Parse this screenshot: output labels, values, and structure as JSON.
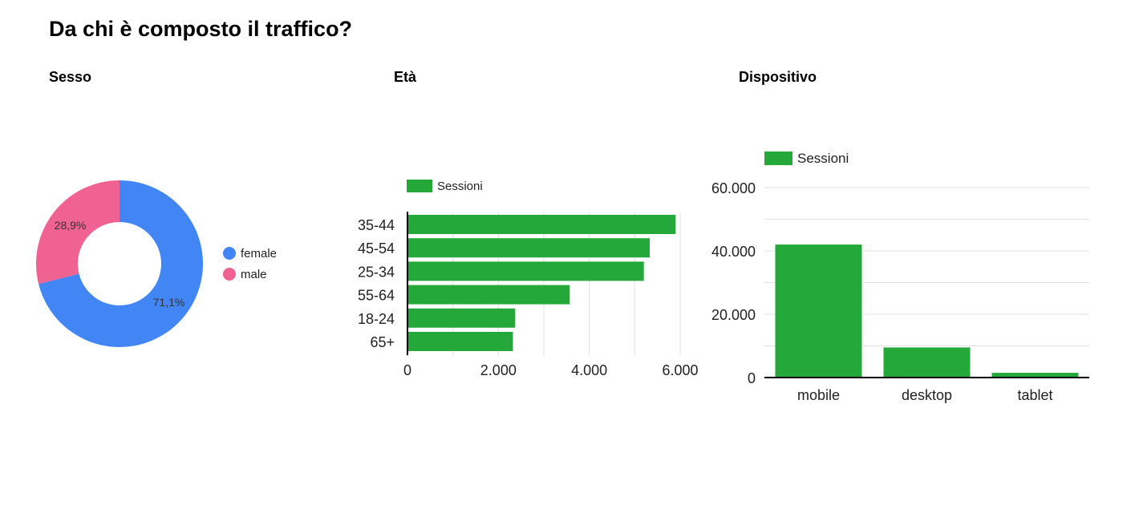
{
  "page": {
    "title": "Da chi è composto il traffico?"
  },
  "sections": {
    "sesso": "Sesso",
    "eta": "Età",
    "dispositivo": "Dispositivo"
  },
  "colors": {
    "female": "#4285f4",
    "male": "#f06292",
    "bar": "#25a83a",
    "grid": "#e0e0e0",
    "axis": "#000000"
  },
  "chart_data": [
    {
      "type": "pie",
      "variant": "donut",
      "title": "Sesso",
      "categories": [
        "female",
        "male"
      ],
      "values": [
        71.1,
        28.9
      ],
      "value_labels": [
        "71,1%",
        "28,9%"
      ],
      "legend": "right"
    },
    {
      "type": "bar",
      "orientation": "horizontal",
      "title": "Età",
      "categories": [
        "35-44",
        "45-54",
        "25-34",
        "55-64",
        "18-24",
        "65+"
      ],
      "series": [
        {
          "name": "Sessioni",
          "values": [
            5900,
            5330,
            5200,
            3570,
            2370,
            2320
          ]
        }
      ],
      "xlim": [
        0,
        6000
      ],
      "xticks": [
        0,
        2000,
        4000,
        6000
      ],
      "xtick_labels": [
        "0",
        "2.000",
        "4.000",
        "6.000"
      ],
      "grid": true,
      "legend": "top-left"
    },
    {
      "type": "bar",
      "orientation": "vertical",
      "title": "Dispositivo",
      "categories": [
        "mobile",
        "desktop",
        "tablet"
      ],
      "series": [
        {
          "name": "Sessioni",
          "values": [
            42000,
            9500,
            1500
          ]
        }
      ],
      "ylim": [
        0,
        60000
      ],
      "yticks": [
        0,
        20000,
        40000,
        60000
      ],
      "ytick_labels": [
        "0",
        "20.000",
        "40.000",
        "60.000"
      ],
      "grid": true,
      "legend": "top-left"
    }
  ]
}
